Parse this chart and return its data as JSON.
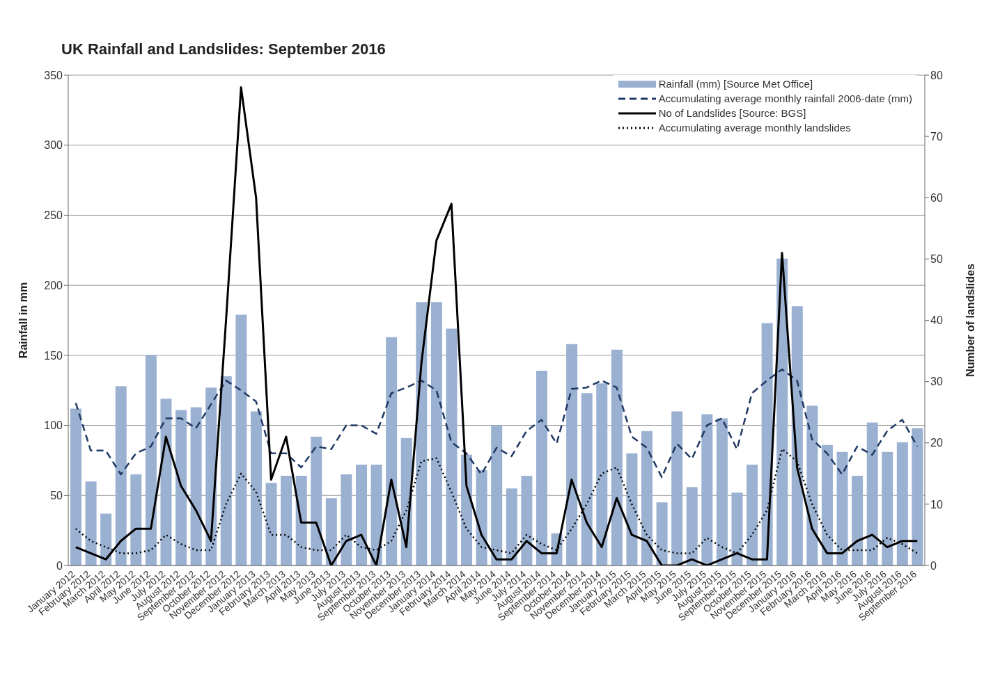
{
  "chart_data": {
    "type": "bar",
    "title": "UK Rainfall and Landslides: September 2016",
    "ylabel": "Rainfall in mm",
    "y2label": "Number of landslides",
    "categories": [
      "January 2012",
      "February 2012",
      "March 2012",
      "April 2012",
      "May 2012",
      "June 2012",
      "July 2012",
      "August 2012",
      "September 2012",
      "October 2012",
      "November 2012",
      "December 2012",
      "January 2013",
      "February 2013",
      "March 2013",
      "April 2013",
      "May 2013",
      "June 2013",
      "July 2013",
      "August 2013",
      "September 2013",
      "October 2013",
      "November 2013",
      "December 2013",
      "January 2014",
      "February 2014",
      "March 2014",
      "April 2014",
      "May 2014",
      "June 2014",
      "July 2014",
      "August 2014",
      "September 2014",
      "October 2014",
      "November 2014",
      "December 2014",
      "January 2015",
      "February 2015",
      "March 2015",
      "April 2015",
      "May 2015",
      "June 2015",
      "July 2015",
      "August 2015",
      "September 2015",
      "October 2015",
      "November 2015",
      "December 2015",
      "January 2016",
      "February 2016",
      "March 2016",
      "April 2016",
      "May 2016",
      "June 2016",
      "July 2016",
      "August 2016",
      "September 2016"
    ],
    "series": [
      {
        "name": "Rainfall (mm) [Source Met Office]",
        "color": "#9bb1d1",
        "values": [
          112,
          60,
          37,
          128,
          65,
          150,
          119,
          111,
          113,
          127,
          135,
          179,
          110,
          59,
          64,
          64,
          92,
          48,
          65,
          72,
          72,
          163,
          91,
          188,
          188,
          169,
          79,
          68,
          100,
          55,
          64,
          139,
          23,
          158,
          123,
          130,
          154,
          80,
          96,
          45,
          110,
          56,
          108,
          105,
          52,
          72,
          173,
          219,
          185,
          114,
          86,
          81,
          64,
          102,
          81,
          88,
          98
        ]
      },
      {
        "name": "Accumulating average monthly rainfall 2006-date (mm)",
        "type": "line",
        "line_style": "dashed",
        "color": "#1f3864",
        "values": [
          116,
          82,
          82,
          65,
          80,
          85,
          105,
          105,
          98,
          115,
          132,
          125,
          117,
          80,
          80,
          70,
          85,
          83,
          100,
          100,
          94,
          123,
          127,
          132,
          125,
          88,
          80,
          65,
          84,
          78,
          96,
          104,
          87,
          126,
          127,
          132,
          127,
          92,
          84,
          63,
          87,
          76,
          100,
          105,
          83,
          123,
          132,
          140,
          132,
          90,
          80,
          65,
          85,
          79,
          96,
          104,
          85
        ]
      },
      {
        "name": "No of Landslides [Source: BGS]",
        "type": "line",
        "line_style": "solid",
        "axis": "y2",
        "color": "#000000",
        "values": [
          3,
          2,
          1,
          4,
          6,
          6,
          21,
          13,
          9,
          4,
          40,
          78,
          60,
          14,
          21,
          7,
          7,
          0,
          4,
          5,
          0,
          14,
          3,
          33,
          53,
          59,
          13,
          5,
          1,
          1,
          4,
          2,
          2,
          14,
          7,
          3,
          11,
          5,
          4,
          0,
          0,
          1,
          0,
          1,
          2,
          1,
          1,
          51,
          16,
          6,
          2,
          2,
          4,
          5,
          3,
          4,
          4
        ]
      },
      {
        "name": "Accumulating average monthly landslides",
        "type": "line",
        "line_style": "dotted",
        "axis": "y2",
        "color": "#000000",
        "values": [
          6,
          4,
          3,
          2,
          2,
          2.5,
          5,
          3.5,
          2.5,
          2.5,
          10,
          15,
          12,
          5,
          5,
          3,
          2.5,
          2.5,
          5,
          3,
          2.5,
          4,
          9,
          17,
          17.5,
          12,
          6,
          3,
          2.5,
          2,
          5,
          3.5,
          2.5,
          6,
          10,
          15,
          16,
          10,
          5,
          2.5,
          2,
          2,
          4.5,
          3,
          2,
          5,
          9,
          19,
          17,
          10,
          5,
          2.5,
          2.5,
          2.5,
          4.5,
          3.5,
          2
        ]
      }
    ],
    "ylim": [
      0,
      350
    ],
    "yticks": [
      0,
      50,
      100,
      150,
      200,
      250,
      300,
      350
    ],
    "y2lim": [
      0,
      80
    ],
    "y2ticks": [
      0,
      10,
      20,
      30,
      40,
      50,
      60,
      70,
      80
    ],
    "grid": "y",
    "legend": "top right",
    "marker": "none"
  }
}
